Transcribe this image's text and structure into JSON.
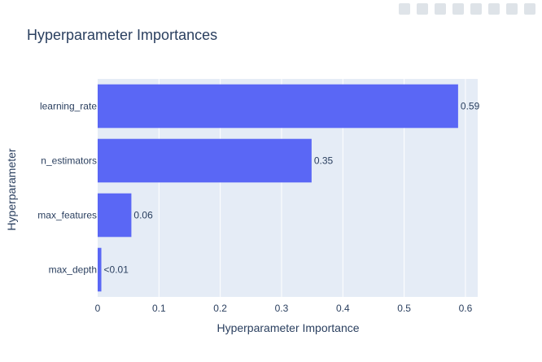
{
  "chart_data": {
    "type": "bar",
    "orientation": "horizontal",
    "title": "Hyperparameter Importances",
    "xlabel": "Hyperparameter Importance",
    "ylabel": "Hyperparameter",
    "categories": [
      "learning_rate",
      "n_estimators",
      "max_features",
      "max_depth"
    ],
    "values": [
      0.588,
      0.349,
      0.055,
      0.006
    ],
    "value_labels": [
      "0.59",
      "0.35",
      "0.06",
      "<0.01"
    ],
    "xlim": [
      0,
      0.62
    ],
    "xticks": [
      0,
      0.1,
      0.2,
      0.3,
      0.4,
      0.5,
      0.6
    ],
    "xtick_labels": [
      "0",
      "0.1",
      "0.2",
      "0.3",
      "0.4",
      "0.5",
      "0.6"
    ],
    "grid": true,
    "colors": {
      "bar": "#636efa",
      "bar_fill": "#5a67f5",
      "plot_bg": "#e5ecf6",
      "grid": "#ffffff",
      "text": "#2a3f5f"
    }
  }
}
